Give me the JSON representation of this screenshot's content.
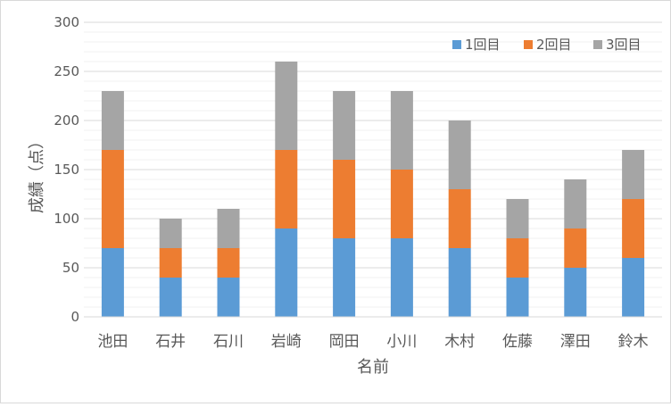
{
  "chart_data": {
    "type": "bar",
    "stacked": true,
    "xlabel": "名前",
    "ylabel": "成績（点）",
    "ylim": [
      0,
      300
    ],
    "yticks": [
      0,
      50,
      100,
      150,
      200,
      250,
      300
    ],
    "grid": true,
    "legend_position": "top-right",
    "categories": [
      "池田",
      "石井",
      "石川",
      "岩崎",
      "岡田",
      "小川",
      "木村",
      "佐藤",
      "澤田",
      "鈴木"
    ],
    "series": [
      {
        "name": "1回目",
        "color": "#5b9bd5",
        "values": [
          70,
          40,
          40,
          90,
          80,
          80,
          70,
          40,
          50,
          60
        ]
      },
      {
        "name": "2回目",
        "color": "#ed7d31",
        "values": [
          100,
          30,
          30,
          80,
          80,
          70,
          60,
          40,
          40,
          60
        ]
      },
      {
        "name": "3回目",
        "color": "#a5a5a5",
        "values": [
          60,
          30,
          40,
          90,
          70,
          80,
          70,
          40,
          50,
          50
        ]
      }
    ]
  }
}
